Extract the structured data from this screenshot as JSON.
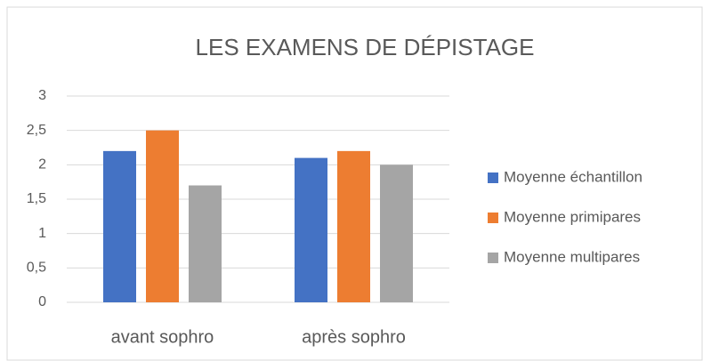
{
  "chart_data": {
    "type": "bar",
    "title": "LES EXAMENS DE DÉPISTAGE",
    "categories": [
      "avant sophro",
      "après sophro"
    ],
    "series": [
      {
        "name": "Moyenne échantillon",
        "color": "#4472c4",
        "values": [
          2.2,
          2.1
        ]
      },
      {
        "name": "Moyenne primipares",
        "color": "#ed7d31",
        "values": [
          2.5,
          2.2
        ]
      },
      {
        "name": "Moyenne multipares",
        "color": "#a5a5a5",
        "values": [
          1.7,
          2.0
        ]
      }
    ],
    "ylim": [
      0,
      3
    ],
    "yticks": [
      0,
      {
        "value": 0.5,
        "label": "0,5"
      },
      1,
      {
        "value": 1.5,
        "label": "1,5"
      },
      2,
      {
        "value": 2.5,
        "label": "2,5"
      },
      3
    ],
    "grid": true,
    "legend": "right"
  }
}
